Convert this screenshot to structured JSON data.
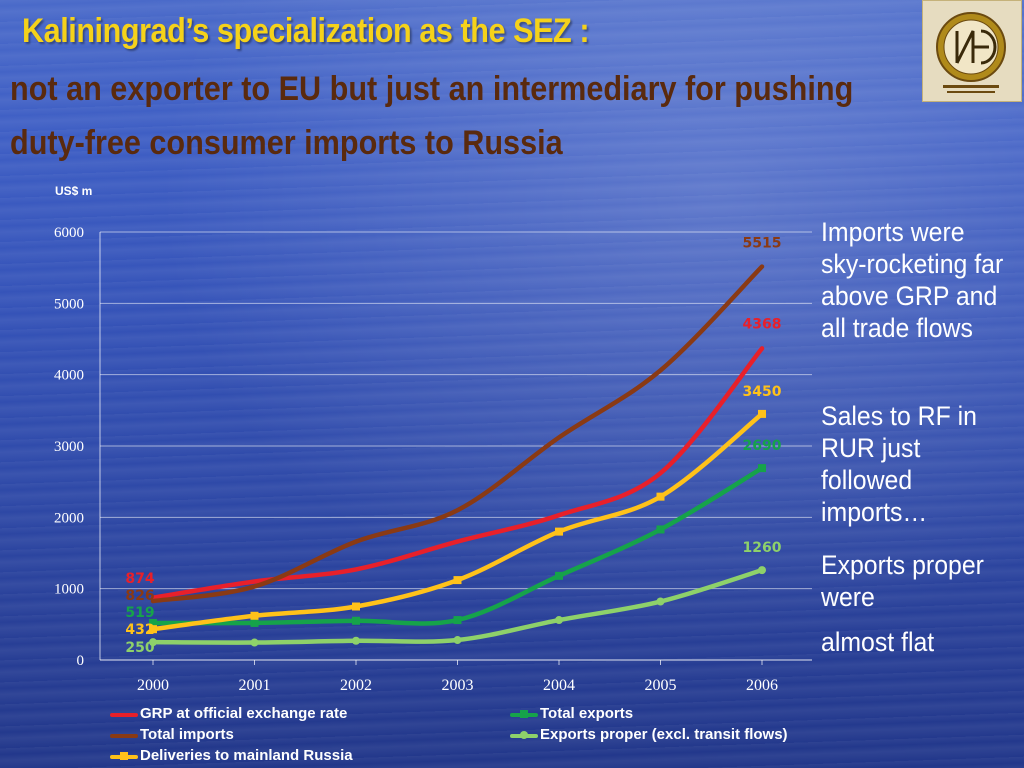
{
  "title": "Kaliningrad’s specialization as the SEZ :",
  "subtitle": "not an exporter to EU but  just  an intermediary for pushing duty-free consumer imports to Russia",
  "unit_label": "US$ m",
  "side_notes": [
    "Imports were sky-rocketing far above GRP and all trade flows",
    "Sales to RF in RUR just followed imports…",
    "Exports proper were",
    "almost flat"
  ],
  "chart_data": {
    "type": "line",
    "categories": [
      "2000",
      "2001",
      "2002",
      "2003",
      "2004",
      "2005",
      "2006"
    ],
    "ylim": [
      0,
      6000
    ],
    "yticks": [
      0,
      1000,
      2000,
      3000,
      4000,
      5000,
      6000
    ],
    "grid": true,
    "legend_position": "bottom",
    "series": [
      {
        "name": "GRP at official exchange rate",
        "color": "#e8202a",
        "marker": "none",
        "values": [
          874,
          1100,
          1270,
          1660,
          2030,
          2620,
          4368
        ],
        "labels": [
          "874",
          "",
          "",
          "",
          "",
          "",
          "4368"
        ]
      },
      {
        "name": "Total exports",
        "color": "#16a34a",
        "marker": "square",
        "values": [
          519,
          520,
          550,
          560,
          1180,
          1830,
          2690
        ],
        "labels": [
          "519",
          "",
          "",
          "",
          "",
          "",
          "2690"
        ]
      },
      {
        "name": "Total imports",
        "color": "#8a3a14",
        "marker": "none",
        "values": [
          826,
          1030,
          1660,
          2100,
          3120,
          4060,
          5515
        ],
        "labels": [
          "826",
          "",
          "",
          "",
          "",
          "",
          "5515"
        ]
      },
      {
        "name": "Exports proper (excl. transit flows)",
        "color": "#8ed16a",
        "marker": "circle",
        "values": [
          250,
          245,
          270,
          280,
          560,
          820,
          1260
        ],
        "labels": [
          "250",
          "",
          "",
          "",
          "",
          "",
          "1260"
        ]
      },
      {
        "name": "Deliveries  to mainland Russia",
        "color": "#ffc21a",
        "marker": "square",
        "values": [
          432,
          620,
          750,
          1120,
          1800,
          2290,
          3450
        ],
        "labels": [
          "432",
          "",
          "",
          "",
          "",
          "",
          "3450"
        ]
      }
    ]
  }
}
